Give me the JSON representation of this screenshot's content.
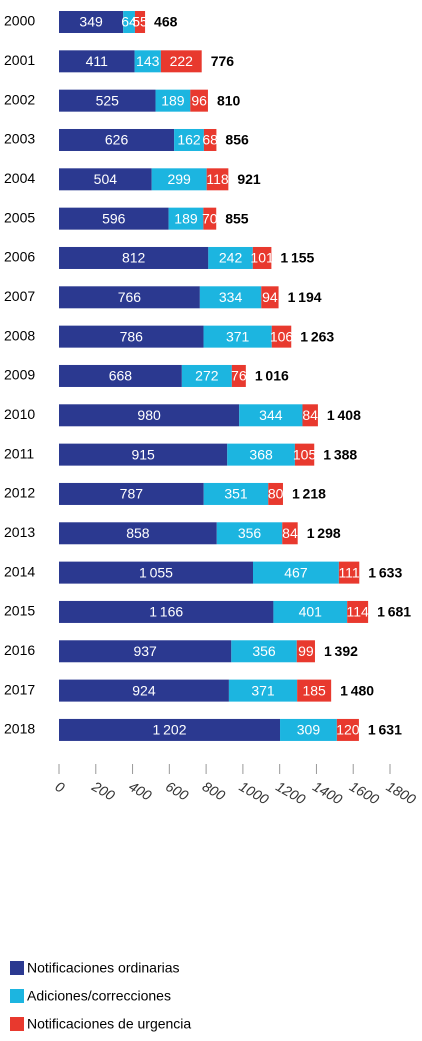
{
  "chart_data": {
    "type": "stacked-bar-horizontal",
    "categories": [
      "2000",
      "2001",
      "2002",
      "2003",
      "2004",
      "2005",
      "2006",
      "2007",
      "2008",
      "2009",
      "2010",
      "2011",
      "2012",
      "2013",
      "2014",
      "2015",
      "2016",
      "2017",
      "2018"
    ],
    "series": [
      {
        "name": "Notificaciones ordinarias",
        "color": "#2b3990",
        "values": [
          349,
          411,
          525,
          626,
          504,
          596,
          812,
          766,
          786,
          668,
          980,
          915,
          787,
          858,
          1055,
          1166,
          937,
          924,
          1202
        ],
        "value_labels": [
          "349",
          "411",
          "525",
          "626",
          "504",
          "596",
          "812",
          "766",
          "786",
          "668",
          "980",
          "915",
          "787",
          "858",
          "1 055",
          "1 166",
          "937",
          "924",
          "1 202"
        ]
      },
      {
        "name": "Adiciones/correcciones",
        "color": "#1cb5e0",
        "values": [
          64,
          143,
          189,
          162,
          299,
          189,
          242,
          334,
          371,
          272,
          344,
          368,
          351,
          356,
          467,
          401,
          356,
          371,
          309
        ]
      },
      {
        "name": "Notificaciones de urgencia",
        "color": "#e8392e",
        "values": [
          55,
          222,
          96,
          68,
          118,
          70,
          101,
          94,
          106,
          76,
          84,
          105,
          80,
          84,
          111,
          114,
          99,
          185,
          120
        ]
      }
    ],
    "totals": [
      468,
      776,
      810,
      856,
      921,
      855,
      1155,
      1194,
      1263,
      1016,
      1408,
      1388,
      1218,
      1298,
      1633,
      1681,
      1392,
      1480,
      1631
    ],
    "total_labels": [
      "468",
      "776",
      "810",
      "856",
      "921",
      "855",
      "1 155",
      "1 194",
      "1 263",
      "1 016",
      "1 408",
      "1 388",
      "1 218",
      "1 298",
      "1 633",
      "1 681",
      "1 392",
      "1 480",
      "1 631"
    ],
    "xlim": [
      0,
      1800
    ],
    "xticks": [
      0,
      200,
      400,
      600,
      800,
      1000,
      1200,
      1400,
      1600,
      1800
    ]
  }
}
